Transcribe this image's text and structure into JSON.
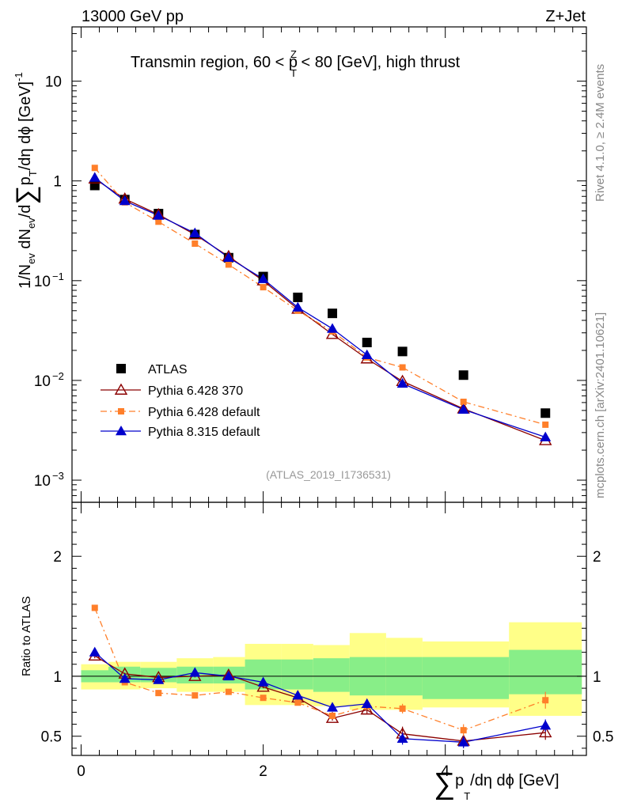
{
  "header": {
    "left": "13000 GeV pp",
    "right": "Z+Jet",
    "region_text": "Transmin region, 60 < p",
    "region_sup": "Z",
    "region_sub": "T",
    "region_tail": " < 80 [GeV], high thrust"
  },
  "side_labels": {
    "rivet": "Rivet 4.1.0, ≥ 2.4M events",
    "mcplots": "mcplots.cern.ch [arXiv:2401.10621]"
  },
  "reference": "(ATLAS_2019_I1736531)",
  "axes": {
    "ylabel_main_a": "1/N",
    "ylabel_main_sub1": "ev",
    "ylabel_main_b": " dN",
    "ylabel_main_sub2": "ev",
    "ylabel_main_c": "/d",
    "ylabel_main_sum": "∑",
    "ylabel_main_d": "p",
    "ylabel_main_sub3": "T",
    "ylabel_main_e": "/dη dϕ  [GeV]",
    "ylabel_main_sup": "-1",
    "ylabel_ratio": "Ratio to ATLAS",
    "xlabel_sum": "∑",
    "xlabel_p": "p",
    "xlabel_sub": "T",
    "xlabel_rest": "/dη dϕ [GeV]"
  },
  "legend": [
    {
      "key": "atlas",
      "label": "ATLAS"
    },
    {
      "key": "py6_370",
      "label": "Pythia 6.428 370"
    },
    {
      "key": "py6_def",
      "label": "Pythia 6.428 default"
    },
    {
      "key": "py8_def",
      "label": "Pythia 8.315 default"
    }
  ],
  "chart_data": {
    "type": "scatter",
    "x": [
      0.15,
      0.48,
      0.85,
      1.25,
      1.62,
      2.0,
      2.38,
      2.76,
      3.14,
      3.53,
      4.2,
      5.1
    ],
    "bins": [
      [
        0.0,
        0.3
      ],
      [
        0.3,
        0.65
      ],
      [
        0.65,
        1.05
      ],
      [
        1.05,
        1.45
      ],
      [
        1.45,
        1.8
      ],
      [
        1.8,
        2.2
      ],
      [
        2.2,
        2.55
      ],
      [
        2.55,
        2.95
      ],
      [
        2.95,
        3.35
      ],
      [
        3.35,
        3.75
      ],
      [
        3.75,
        4.7
      ],
      [
        4.7,
        5.5
      ]
    ],
    "main": {
      "yscale": "log",
      "ylim": [
        0.0006,
        35
      ],
      "yticks": [
        {
          "v": 0.001,
          "label": "10",
          "sup": "−3"
        },
        {
          "v": 0.01,
          "label": "10",
          "sup": "−2"
        },
        {
          "v": 0.1,
          "label": "10",
          "sup": "−1"
        },
        {
          "v": 1,
          "label": "1",
          "sup": ""
        },
        {
          "v": 10,
          "label": "10",
          "sup": ""
        }
      ],
      "series": [
        {
          "key": "atlas",
          "name": "ATLAS",
          "color": "#000000",
          "marker": "square",
          "values": [
            0.9,
            0.65,
            0.47,
            0.29,
            0.17,
            0.11,
            0.068,
            0.047,
            0.024,
            0.0195,
            0.0113,
            0.0047
          ]
        },
        {
          "key": "py6_370",
          "name": "Pythia 6.428 370",
          "color": "#8b0000",
          "marker": "open-triangle",
          "line": "solid",
          "values": [
            1.05,
            0.66,
            0.46,
            0.29,
            0.175,
            0.1,
            0.052,
            0.029,
            0.0165,
            0.0098,
            0.0052,
            0.0025
          ]
        },
        {
          "key": "py6_def",
          "name": "Pythia 6.428 default",
          "color": "#ff7f2a",
          "marker": "square-small",
          "line": "dashdot",
          "values": [
            1.35,
            0.61,
            0.39,
            0.235,
            0.145,
            0.086,
            0.05,
            0.031,
            0.017,
            0.0135,
            0.0061,
            0.0036
          ]
        },
        {
          "key": "py8_def",
          "name": "Pythia 8.315 default",
          "color": "#0000cc",
          "marker": "triangle",
          "line": "solid",
          "values": [
            1.08,
            0.63,
            0.45,
            0.3,
            0.17,
            0.104,
            0.054,
            0.033,
            0.018,
            0.0093,
            0.0051,
            0.0027
          ]
        }
      ]
    },
    "ratio": {
      "ylim": [
        0.34,
        2.45
      ],
      "yticks": [
        0.5,
        1,
        2
      ],
      "band_inner": [
        [
          0.95,
          1.05
        ],
        [
          0.95,
          1.08
        ],
        [
          0.95,
          1.07
        ],
        [
          0.94,
          1.08
        ],
        [
          0.94,
          1.08
        ],
        [
          0.89,
          1.14
        ],
        [
          0.89,
          1.14
        ],
        [
          0.87,
          1.15
        ],
        [
          0.84,
          1.16
        ],
        [
          0.84,
          1.16
        ],
        [
          0.81,
          1.16
        ],
        [
          0.85,
          1.22
        ]
      ],
      "band_outer": [
        [
          0.89,
          1.1
        ],
        [
          0.89,
          1.12
        ],
        [
          0.9,
          1.12
        ],
        [
          0.87,
          1.15
        ],
        [
          0.87,
          1.16
        ],
        [
          0.76,
          1.27
        ],
        [
          0.76,
          1.27
        ],
        [
          0.75,
          1.26
        ],
        [
          0.72,
          1.36
        ],
        [
          0.72,
          1.32
        ],
        [
          0.74,
          1.29
        ],
        [
          0.67,
          1.45
        ]
      ],
      "series": [
        {
          "key": "py6_370",
          "values": [
            1.17,
            1.02,
            0.99,
            1.0,
            1.01,
            0.91,
            0.82,
            0.65,
            0.72,
            0.52,
            0.46,
            0.53
          ],
          "err": [
            0.02,
            0.01,
            0.01,
            0.01,
            0.01,
            0.01,
            0.02,
            0.02,
            0.03,
            0.06,
            0.05,
            0.06
          ]
        },
        {
          "key": "py6_def",
          "values": [
            1.57,
            0.95,
            0.86,
            0.84,
            0.87,
            0.82,
            0.78,
            0.67,
            0.75,
            0.73,
            0.55,
            0.8
          ],
          "err": [
            0.02,
            0.01,
            0.01,
            0.01,
            0.01,
            0.02,
            0.02,
            0.02,
            0.03,
            0.04,
            0.05,
            0.07
          ]
        },
        {
          "key": "py8_def",
          "values": [
            1.2,
            0.98,
            0.97,
            1.03,
            1.0,
            0.95,
            0.84,
            0.74,
            0.77,
            0.48,
            0.45,
            0.59
          ],
          "err": [
            0.02,
            0.01,
            0.01,
            0.01,
            0.01,
            0.01,
            0.02,
            0.03,
            0.04,
            0.05,
            0.05,
            0.05
          ]
        }
      ]
    },
    "xlim": [
      -0.1,
      5.55
    ],
    "xticks": [
      0,
      2,
      4
    ]
  }
}
